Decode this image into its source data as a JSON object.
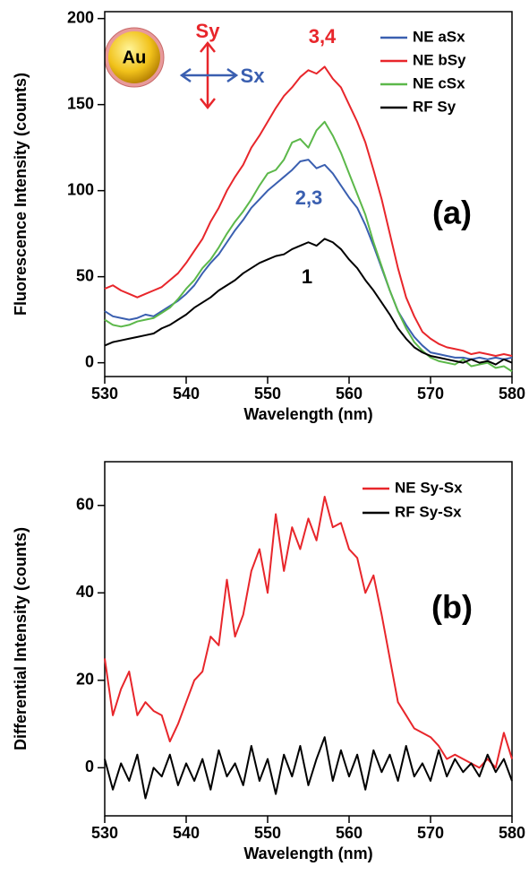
{
  "chart_data": [
    {
      "type": "line",
      "xlabel": "Wavelength (nm)",
      "ylabel": "Fluorescence Intensity (counts)",
      "x": [
        530,
        531,
        532,
        533,
        534,
        535,
        536,
        537,
        538,
        539,
        540,
        541,
        542,
        543,
        544,
        545,
        546,
        547,
        548,
        549,
        550,
        551,
        552,
        553,
        554,
        555,
        556,
        557,
        558,
        559,
        560,
        561,
        562,
        563,
        564,
        565,
        566,
        567,
        568,
        569,
        570,
        571,
        572,
        573,
        574,
        575,
        576,
        577,
        578,
        579,
        580
      ],
      "xlim": [
        530,
        580
      ],
      "xticks": [
        530,
        540,
        550,
        560,
        570,
        580
      ],
      "ylim": [
        -8,
        204
      ],
      "yticks": [
        0,
        50,
        100,
        150,
        200
      ],
      "legend": "upper right",
      "series": [
        {
          "name": "NE aSx",
          "color": "#3a5fb0",
          "values": [
            30,
            27,
            26,
            25,
            26,
            28,
            27,
            30,
            33,
            36,
            40,
            45,
            52,
            58,
            63,
            70,
            77,
            83,
            90,
            95,
            100,
            104,
            108,
            112,
            117,
            118,
            113,
            115,
            110,
            103,
            96,
            90,
            80,
            68,
            55,
            42,
            30,
            22,
            15,
            10,
            6,
            5,
            4,
            3,
            3,
            2,
            3,
            2,
            3,
            2,
            3
          ]
        },
        {
          "name": "NE bSy",
          "color": "#e8262b",
          "values": [
            43,
            45,
            42,
            40,
            38,
            40,
            42,
            44,
            48,
            52,
            58,
            65,
            72,
            82,
            90,
            100,
            108,
            115,
            125,
            132,
            140,
            148,
            155,
            160,
            166,
            170,
            168,
            172,
            165,
            160,
            150,
            140,
            128,
            112,
            95,
            75,
            55,
            38,
            27,
            18,
            14,
            11,
            9,
            8,
            7,
            5,
            6,
            5,
            4,
            5,
            4
          ]
        },
        {
          "name": "NE cSx",
          "color": "#5cb84a",
          "values": [
            25,
            22,
            21,
            22,
            24,
            25,
            26,
            29,
            32,
            37,
            43,
            48,
            55,
            60,
            67,
            75,
            82,
            88,
            95,
            103,
            110,
            112,
            118,
            128,
            130,
            125,
            135,
            140,
            132,
            122,
            110,
            98,
            86,
            70,
            56,
            42,
            30,
            20,
            12,
            7,
            3,
            1,
            0,
            -1,
            2,
            -2,
            -1,
            0,
            -3,
            -2,
            -5
          ]
        },
        {
          "name": "RF Sy",
          "color": "#000000",
          "values": [
            10,
            12,
            13,
            14,
            15,
            16,
            17,
            20,
            22,
            25,
            28,
            32,
            35,
            38,
            42,
            45,
            48,
            52,
            55,
            58,
            60,
            62,
            63,
            66,
            68,
            70,
            68,
            72,
            70,
            66,
            60,
            55,
            48,
            42,
            35,
            28,
            20,
            14,
            9,
            6,
            4,
            3,
            2,
            1,
            0,
            2,
            0,
            1,
            -1,
            2,
            0
          ]
        }
      ],
      "annotations": [
        {
          "text": "3,4",
          "color": "#e8262b"
        },
        {
          "text": "2,3",
          "color": "#3a5fb0"
        },
        {
          "text": "1",
          "color": "#000000"
        },
        {
          "text": "(a)",
          "color": "#000000"
        },
        {
          "text": "Au",
          "color": "#000000"
        },
        {
          "text": "Sy",
          "color": "#e8262b"
        },
        {
          "text": "Sx",
          "color": "#3a5fb0"
        }
      ]
    },
    {
      "type": "line",
      "xlabel": "Wavelength (nm)",
      "ylabel": "Differential Intensity (counts)",
      "x": [
        530,
        531,
        532,
        533,
        534,
        535,
        536,
        537,
        538,
        539,
        540,
        541,
        542,
        543,
        544,
        545,
        546,
        547,
        548,
        549,
        550,
        551,
        552,
        553,
        554,
        555,
        556,
        557,
        558,
        559,
        560,
        561,
        562,
        563,
        564,
        565,
        566,
        567,
        568,
        569,
        570,
        571,
        572,
        573,
        574,
        575,
        576,
        577,
        578,
        579,
        580
      ],
      "xlim": [
        530,
        580
      ],
      "xticks": [
        530,
        540,
        550,
        560,
        570,
        580
      ],
      "ylim": [
        -11,
        70
      ],
      "yticks": [
        0,
        20,
        40,
        60
      ],
      "legend": "upper right",
      "series": [
        {
          "name": "NE Sy-Sx",
          "color": "#e8262b",
          "values": [
            25,
            12,
            18,
            22,
            12,
            15,
            13,
            12,
            6,
            10,
            15,
            20,
            22,
            30,
            28,
            43,
            30,
            35,
            45,
            50,
            40,
            58,
            45,
            55,
            50,
            57,
            52,
            62,
            55,
            56,
            50,
            48,
            40,
            44,
            35,
            25,
            15,
            12,
            9,
            8,
            7,
            5,
            2,
            3,
            2,
            1,
            0,
            2,
            0,
            8,
            2
          ]
        },
        {
          "name": "RF Sy-Sx",
          "color": "#000000",
          "values": [
            2,
            -5,
            1,
            -3,
            3,
            -7,
            0,
            -2,
            3,
            -4,
            1,
            -3,
            2,
            -5,
            4,
            -2,
            1,
            -4,
            5,
            -3,
            2,
            -6,
            3,
            -2,
            5,
            -4,
            2,
            7,
            -3,
            4,
            -2,
            3,
            -5,
            4,
            -1,
            3,
            -3,
            5,
            -2,
            1,
            -3,
            4,
            -2,
            2,
            -1,
            1,
            -2,
            3,
            -1,
            2,
            -3
          ]
        }
      ],
      "annotations": [
        {
          "text": "(b)",
          "color": "#000000"
        }
      ]
    }
  ]
}
